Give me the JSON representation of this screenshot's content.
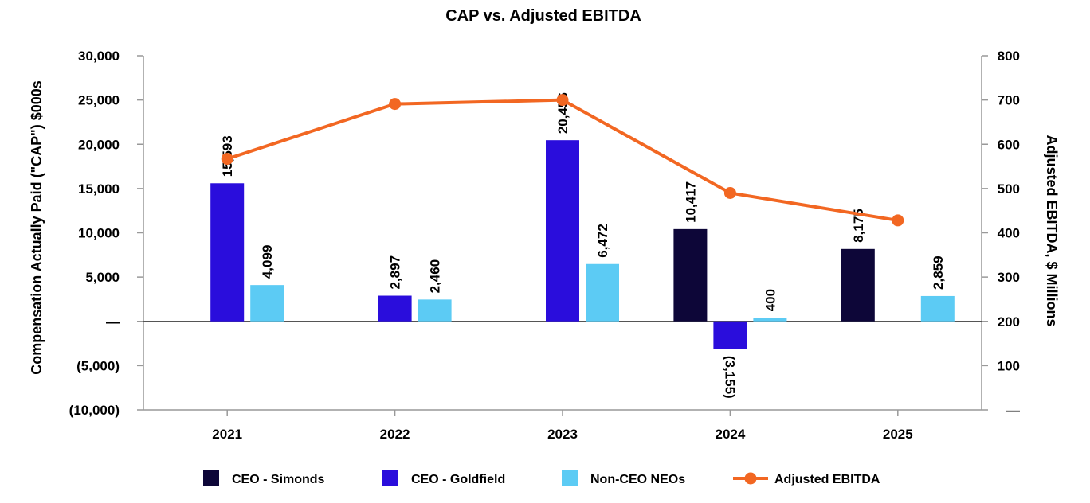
{
  "chart_data": {
    "type": "bar",
    "title": "CAP vs. Adjusted EBITDA",
    "categories": [
      "2021",
      "2022",
      "2023",
      "2024",
      "2025"
    ],
    "ylabel": "Compensation Actually Paid (\"CAP\") $000s",
    "y2label": "Adjusted EBITDA, $ Millions",
    "ylim": [
      -10000,
      30000
    ],
    "y2lim": [
      0,
      800
    ],
    "yticks": [
      {
        "value": 30000,
        "label": "30,000"
      },
      {
        "value": 25000,
        "label": "25,000"
      },
      {
        "value": 20000,
        "label": "20,000"
      },
      {
        "value": 15000,
        "label": "15,000"
      },
      {
        "value": 10000,
        "label": "10,000"
      },
      {
        "value": 5000,
        "label": "5,000"
      },
      {
        "value": 0,
        "label": "—"
      },
      {
        "value": -5000,
        "label": "(5,000)"
      },
      {
        "value": -10000,
        "label": "(10,000)"
      }
    ],
    "y2ticks": [
      {
        "value": 800,
        "label": "800"
      },
      {
        "value": 700,
        "label": "700"
      },
      {
        "value": 600,
        "label": "600"
      },
      {
        "value": 500,
        "label": "500"
      },
      {
        "value": 400,
        "label": "400"
      },
      {
        "value": 300,
        "label": "300"
      },
      {
        "value": 200,
        "label": "200"
      },
      {
        "value": 100,
        "label": "100"
      },
      {
        "value": 0,
        "label": "—"
      }
    ],
    "series": [
      {
        "name": "CEO - Simonds",
        "color": "#0d0638",
        "type": "bar",
        "values": [
          null,
          null,
          null,
          10417,
          8175
        ],
        "labels": [
          null,
          null,
          null,
          "10,417",
          "8,175"
        ]
      },
      {
        "name": "CEO - Goldfield",
        "color": "#2a0ddc",
        "type": "bar",
        "values": [
          15593,
          2897,
          20456,
          -3155,
          null
        ],
        "labels": [
          "15,593",
          "2,897",
          "20,456",
          "(3,155)",
          null
        ]
      },
      {
        "name": "Non-CEO NEOs",
        "color": "#5ccbf4",
        "type": "bar",
        "values": [
          4099,
          2460,
          6472,
          400,
          2859
        ],
        "labels": [
          "4,099",
          "2,460",
          "6,472",
          "400",
          "2,859"
        ]
      },
      {
        "name": "Adjusted EBITDA",
        "color": "#f26722",
        "type": "line",
        "axis": "right",
        "values": [
          567,
          691,
          700,
          490,
          428
        ]
      }
    ],
    "legend": "bottom",
    "grid": false
  }
}
